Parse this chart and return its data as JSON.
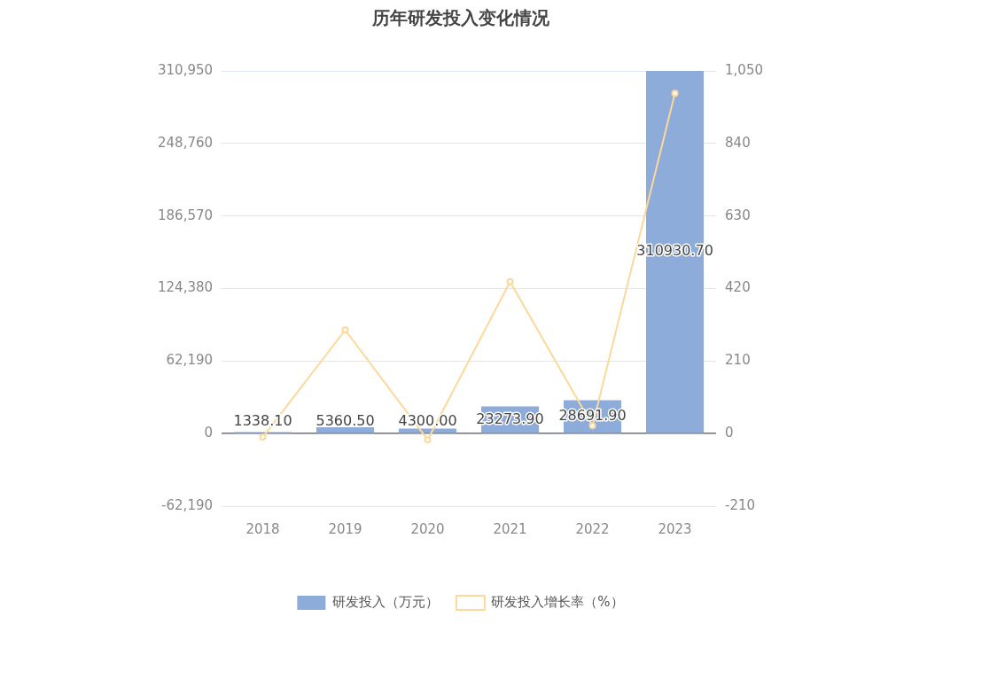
{
  "chart_data": {
    "type": "bar",
    "title": "历年研发投入变化情况",
    "categories": [
      "2018",
      "2019",
      "2020",
      "2021",
      "2022",
      "2023"
    ],
    "series": [
      {
        "name": "研发投入（万元）",
        "color": "#8eacd9",
        "values": [
          1338.1,
          5360.5,
          4300.0,
          23273.9,
          28691.9,
          310930.7
        ],
        "value_labels": [
          "1338.10",
          "5360.50",
          "4300.00",
          "23273.90",
          "28691.90",
          "310930.70"
        ]
      },
      {
        "name": "研发投入增长率（%）",
        "type": "line",
        "axis": "y2",
        "color": "#fcd89a",
        "marker": "circle",
        "values": [
          -10,
          300,
          -18,
          440,
          23,
          985
        ]
      }
    ],
    "ylim": [
      -62190,
      310950
    ],
    "yticks": [
      {
        "value": -62190,
        "label": "-62,190"
      },
      0,
      {
        "value": 62190,
        "label": "62,190"
      },
      {
        "value": 124380,
        "label": "124,380"
      },
      {
        "value": 186570,
        "label": "186,570"
      },
      {
        "value": 248760,
        "label": "248,760"
      },
      {
        "value": 310950,
        "label": "310,950"
      }
    ],
    "y2lim": [
      -210,
      1050
    ],
    "y2ticks": [
      -210,
      0,
      210,
      420,
      630,
      840,
      {
        "value": 1050,
        "label": "1,050"
      }
    ],
    "grid": "y",
    "legend": "bottom"
  }
}
